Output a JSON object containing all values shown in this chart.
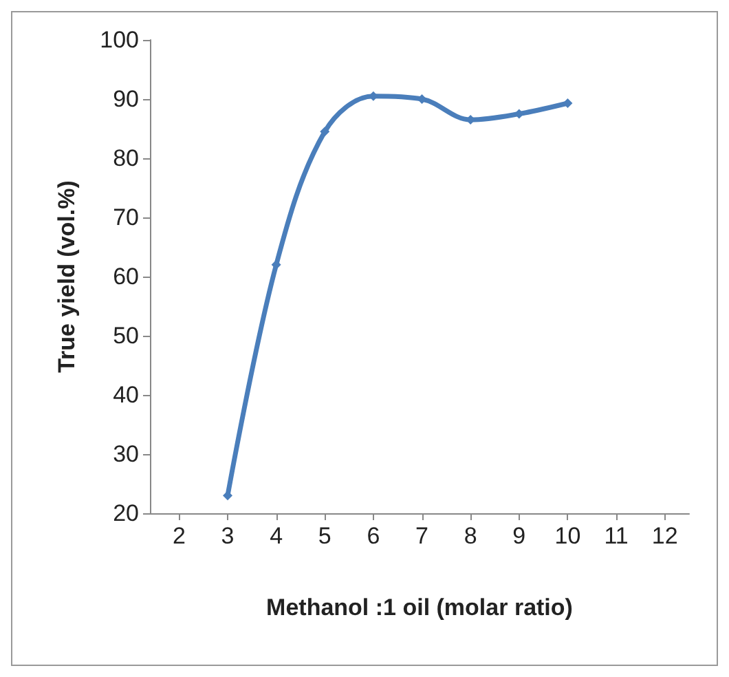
{
  "chart_data": {
    "type": "line",
    "xlabel": "Methanol :1 oil (molar ratio)",
    "ylabel": "True yield (vol.%)",
    "x": [
      3,
      4,
      5,
      6,
      7,
      8,
      9,
      10
    ],
    "series": [
      {
        "color": "#4a7ebb",
        "values": [
          23,
          62,
          84.5,
          90.5,
          90,
          86.5,
          87.5,
          89.3
        ]
      }
    ],
    "xlim": [
      1.4,
      12.5
    ],
    "xticks": [
      2,
      3,
      4,
      5,
      6,
      7,
      8,
      9,
      10,
      11,
      12
    ],
    "ylim": [
      20,
      100
    ],
    "yticks": [
      20,
      30,
      40,
      50,
      60,
      70,
      80,
      90,
      100
    ],
    "marker": "diamond",
    "line_style": "solid",
    "grid": false
  }
}
